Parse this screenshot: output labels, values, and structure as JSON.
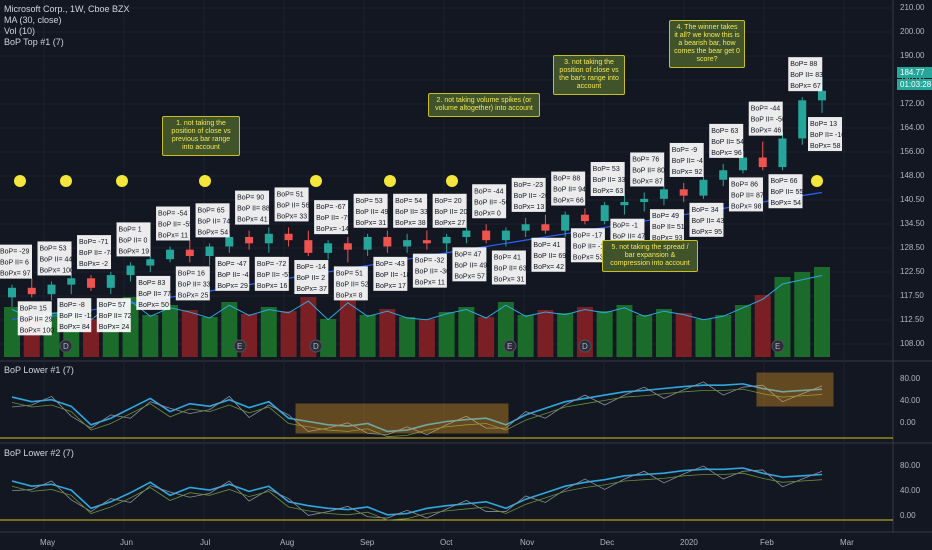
{
  "main_legend": {
    "title": "Microsoft Corp., 1W, Cboe BZX",
    "ma": "MA (30, close)",
    "vol": "Vol (10)",
    "bop_top": "BoP Top #1 (7)"
  },
  "pane2_legend": "BoP Lower #1 (7)",
  "pane3_legend": "BoP Lower #2 (7)",
  "price_axis": [
    "210.00",
    "200.00",
    "190.00",
    "180.00",
    "172.00",
    "164.00",
    "156.00",
    "148.00",
    "140.50",
    "134.50",
    "128.50",
    "122.50",
    "117.50",
    "112.50",
    "108.00"
  ],
  "price_tags": {
    "last": "184.77",
    "countdown": "01:03:28"
  },
  "osc_axis_1": [
    "80.00",
    "40.00",
    "0.00"
  ],
  "osc_axis_2": [
    "80.00",
    "40.00",
    "0.00"
  ],
  "time_axis": [
    "May",
    "Jun",
    "Jul",
    "Aug",
    "Sep",
    "Oct",
    "Nov",
    "Dec",
    "2020",
    "Feb",
    "Mar"
  ],
  "event_markers": [
    "D",
    "E",
    "D",
    "E",
    "D",
    "E"
  ],
  "notes": [
    "1. not taking the position of close vs previous bar range into account",
    "2. not taking volume spikes (or volume altogether) into account",
    "3. not taking the position of close vs the bar's range into account",
    "4. The winner takes it all? we know this is a bearish bar, how comes the bear get 0 score?",
    "5. not taking the spread / bar expansion & compression into account"
  ],
  "bop_labels": [
    [
      "BoP= -29",
      "BoP II= 6",
      "BoPx= 97"
    ],
    [
      "BoP= 15",
      "BoP II= 29",
      "BoPx= 100"
    ],
    [
      "BoP= 53",
      "BoP II= 44",
      "BoPx= 100"
    ],
    [
      "BoP= -8",
      "BoP II= -11",
      "BoPx= 84"
    ],
    [
      "BoP= -71",
      "BoP II= -78",
      "BoPx= -2"
    ],
    [
      "BoP= 57",
      "BoP II= 72",
      "BoPx= 24"
    ],
    [
      "BoP= 1",
      "BoP II= 0",
      "BoPx= 19"
    ],
    [
      "BoP= 83",
      "BoP II= 77",
      "BoPx= 50"
    ],
    [
      "BoP= -54",
      "BoP II= -55",
      "BoPx= 11"
    ],
    [
      "BoP= 16",
      "BoP II= 33",
      "BoPx= 25"
    ],
    [
      "BoP= 65",
      "BoP II= 74",
      "BoPx= 54"
    ],
    [
      "BoP= -47",
      "BoP II= -41",
      "BoPx= 29"
    ],
    [
      "BoP= 90",
      "BoP II= 88",
      "BoPx= 41"
    ],
    [
      "BoP= -72",
      "BoP II= -57",
      "BoPx= 16"
    ],
    [
      "BoP= 51",
      "BoP II= 56",
      "BoPx= 33"
    ],
    [
      "BoP= -14",
      "BoP II= 2",
      "BoPx= 37"
    ],
    [
      "BoP= -67",
      "BoP II= -75",
      "BoPx= -14"
    ],
    [
      "BoP= 51",
      "BoP II= 52",
      "BoPx= 8"
    ],
    [
      "BoP= 53",
      "BoP II= 49",
      "BoPx= 31"
    ],
    [
      "BoP= -43",
      "BoP II= -18",
      "BoPx= 17"
    ],
    [
      "BoP= 54",
      "BoP II= 33",
      "BoPx= 38"
    ],
    [
      "BoP= -32",
      "BoP II= -30",
      "BoPx= 11"
    ],
    [
      "BoP= 20",
      "BoP II= 20",
      "BoPx= 27"
    ],
    [
      "BoP= 47",
      "BoP II= 49",
      "BoPx= 57"
    ],
    [
      "BoP= -44",
      "BoP II= -56",
      "BoPx= 0"
    ],
    [
      "BoP= 41",
      "BoP II= 63",
      "BoPx= 31"
    ],
    [
      "BoP= -23",
      "BoP II= -26",
      "BoPx= 13"
    ],
    [
      "BoP= 41",
      "BoP II= 69",
      "BoPx= 42"
    ],
    [
      "BoP= 88",
      "BoP II= 94",
      "BoPx= 66"
    ],
    [
      "BoP= -17",
      "BoP II= -19",
      "BoPx= 53"
    ],
    [
      "BoP= 53",
      "BoP II= 33",
      "BoPx= 63"
    ],
    [
      "BoP= -1",
      "BoP II= 47",
      "BoPx= 78"
    ],
    [
      "BoP= 76",
      "BoP II= 80",
      "BoPx= 87"
    ],
    [
      "BoP= 49",
      "BoP II= 51",
      "BoPx= 93"
    ],
    [
      "BoP= -9",
      "BoP II= -4",
      "BoPx= 92"
    ],
    [
      "BoP= 34",
      "BoP II= 43",
      "BoPx= 95"
    ],
    [
      "BoP= 63",
      "BoP II= 54",
      "BoPx= 96"
    ],
    [
      "BoP= 86",
      "BoP II= 87",
      "BoPx= 98"
    ],
    [
      "BoP= -44",
      "BoP II= -56",
      "BoPx= 46"
    ],
    [
      "BoP= 66",
      "BoP II= 55",
      "BoPx= 54"
    ],
    [
      "BoP= 88",
      "BoP II= 83",
      "BoPx= 67"
    ],
    [
      "BoP= 13",
      "BoP II= -10",
      "BoPx= 58"
    ]
  ],
  "colors": {
    "bg": "#131722",
    "up": "#26a69a",
    "down": "#ef5350",
    "vol_up": "#1b6b2a",
    "vol_down": "#7a1f24",
    "ma": "#2962ff",
    "bop_line": "#2ea9df",
    "highlight": "#f5a623"
  },
  "chart_data": {
    "type": "candlestick",
    "ylim": [
      105,
      212
    ],
    "candles": [
      [
        120,
        124,
        117,
        123
      ],
      [
        123,
        126,
        120,
        121
      ],
      [
        121,
        125,
        119,
        124
      ],
      [
        124,
        127,
        121,
        126
      ],
      [
        126,
        127,
        122,
        123
      ],
      [
        123,
        128,
        121,
        127
      ],
      [
        127,
        131,
        125,
        130
      ],
      [
        130,
        133,
        128,
        132
      ],
      [
        132,
        136,
        131,
        135
      ],
      [
        135,
        138,
        131,
        133
      ],
      [
        133,
        137,
        130,
        136
      ],
      [
        136,
        140,
        134,
        139
      ],
      [
        139,
        141,
        135,
        137
      ],
      [
        137,
        142,
        134,
        140
      ],
      [
        140,
        142,
        136,
        138
      ],
      [
        138,
        141,
        133,
        134
      ],
      [
        134,
        138,
        132,
        137
      ],
      [
        137,
        139,
        131,
        135
      ],
      [
        135,
        140,
        133,
        139
      ],
      [
        139,
        141,
        134,
        136
      ],
      [
        136,
        140,
        134,
        138
      ],
      [
        138,
        141,
        135,
        137
      ],
      [
        137,
        140,
        134,
        139
      ],
      [
        139,
        142,
        137,
        141
      ],
      [
        141,
        143,
        137,
        138
      ],
      [
        138,
        142,
        136,
        141
      ],
      [
        141,
        145,
        139,
        143
      ],
      [
        143,
        146,
        140,
        141
      ],
      [
        141,
        147,
        139,
        146
      ],
      [
        146,
        148,
        143,
        144
      ],
      [
        144,
        150,
        143,
        149
      ],
      [
        149,
        152,
        146,
        150
      ],
      [
        150,
        153,
        147,
        151
      ],
      [
        151,
        155,
        149,
        154
      ],
      [
        154,
        156,
        150,
        152
      ],
      [
        152,
        158,
        151,
        157
      ],
      [
        157,
        162,
        155,
        160
      ],
      [
        160,
        166,
        159,
        164
      ],
      [
        164,
        169,
        160,
        161
      ],
      [
        161,
        172,
        160,
        170
      ],
      [
        170,
        183,
        168,
        182
      ],
      [
        182,
        190,
        178,
        185
      ]
    ],
    "volume": [
      50,
      40,
      45,
      48,
      38,
      55,
      60,
      42,
      52,
      47,
      40,
      55,
      43,
      50,
      46,
      60,
      38,
      58,
      42,
      48,
      40,
      38,
      45,
      50,
      40,
      55,
      42,
      47,
      44,
      50,
      46,
      52,
      42,
      48,
      44,
      38,
      42,
      52,
      62,
      80,
      85,
      90
    ],
    "ma": [
      113,
      114,
      114,
      115,
      116,
      117,
      118,
      119,
      120,
      121,
      122,
      123,
      124,
      125,
      126,
      127,
      128,
      129,
      130,
      131,
      132,
      133,
      134,
      135,
      136,
      137,
      138,
      139,
      140,
      141,
      142,
      143,
      144,
      145,
      146,
      147,
      148,
      149,
      150,
      151,
      152,
      153
    ],
    "bop_lower_1": [
      62,
      55,
      58,
      48,
      20,
      30,
      45,
      60,
      40,
      52,
      48,
      58,
      46,
      55,
      30,
      25,
      20,
      18,
      22,
      10,
      12,
      20,
      25,
      28,
      30,
      20,
      35,
      45,
      55,
      60,
      65,
      70,
      72,
      75,
      78,
      80,
      80,
      82,
      75,
      70,
      72,
      74
    ],
    "bop_lower_2": [
      60,
      52,
      55,
      46,
      18,
      28,
      42,
      58,
      38,
      50,
      46,
      55,
      44,
      52,
      28,
      22,
      18,
      16,
      20,
      8,
      10,
      18,
      22,
      25,
      28,
      18,
      32,
      42,
      52,
      58,
      62,
      68,
      70,
      72,
      76,
      78,
      78,
      80,
      72,
      66,
      68,
      70
    ]
  }
}
